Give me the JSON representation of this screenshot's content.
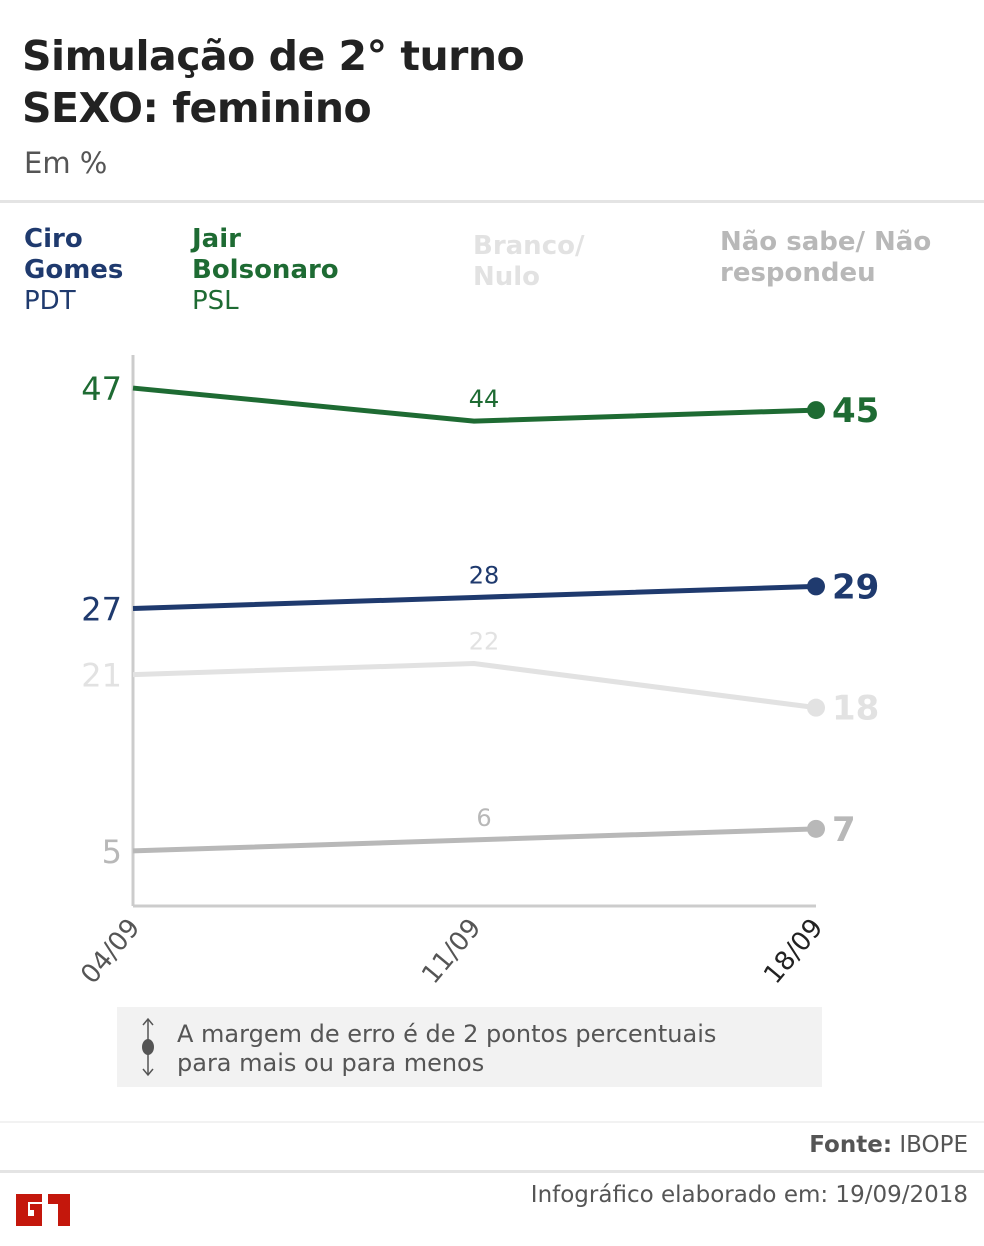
{
  "header": {
    "title_line1": "Simulação de 2° turno",
    "title_line2": "SEXO: feminino",
    "subtitle": "Em %"
  },
  "legend": [
    {
      "name": "Ciro Gomes",
      "party": "PDT",
      "color": "#1f3a6e"
    },
    {
      "name": "Jair Bolsonaro",
      "party": "PSL",
      "color": "#1e6b33"
    },
    {
      "name": "Branco/ Nulo",
      "party": "",
      "color": "#e2e2e2"
    },
    {
      "name": "Não sabe/ Não respondeu",
      "party": "",
      "color": "#b8b8b8"
    }
  ],
  "chart_data": {
    "type": "line",
    "categories": [
      "04/09",
      "11/09",
      "18/09"
    ],
    "ylim": [
      0,
      50
    ],
    "grid": false,
    "series": [
      {
        "name": "Jair Bolsonaro",
        "values": [
          47,
          44,
          45
        ],
        "color": "#1e6b33"
      },
      {
        "name": "Ciro Gomes",
        "values": [
          27,
          28,
          29
        ],
        "color": "#1f3a6e"
      },
      {
        "name": "Branco/ Nulo",
        "values": [
          21,
          22,
          18
        ],
        "color": "#e2e2e2"
      },
      {
        "name": "Não sabe/ Não respondeu",
        "values": [
          5,
          6,
          7
        ],
        "color": "#b8b8b8"
      }
    ]
  },
  "note": {
    "line1": "A margem de erro é de 2 pontos percentuais",
    "line2": "para mais ou para menos"
  },
  "footer": {
    "source_label": "Fonte:",
    "source": "IBOPE",
    "created": "Infográfico elaborado em: 19/09/2018",
    "logo": "G1"
  }
}
